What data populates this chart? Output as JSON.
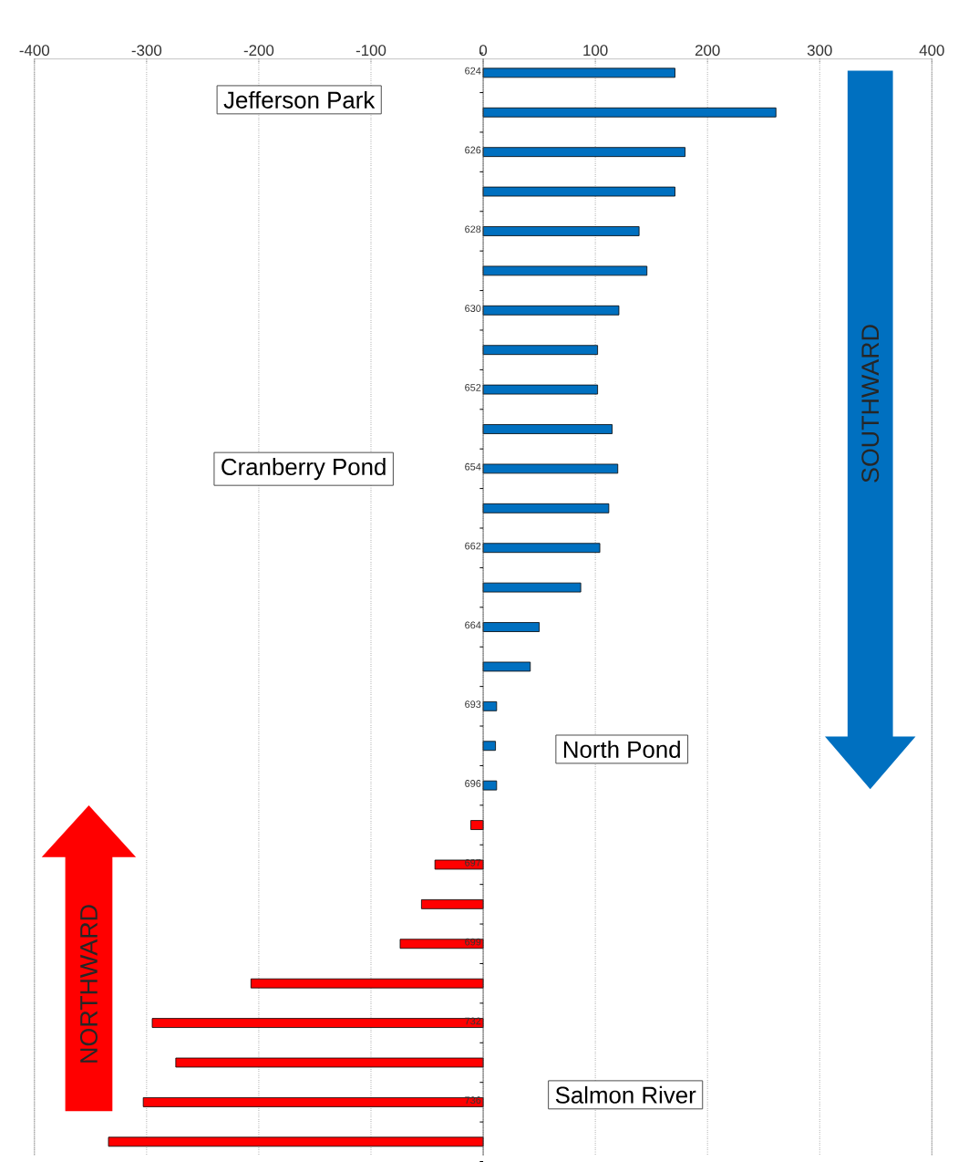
{
  "chart_data": {
    "type": "bar",
    "orientation": "horizontal",
    "categories": [
      "624",
      null,
      "626",
      null,
      "628",
      null,
      "630",
      null,
      "652",
      null,
      "654",
      null,
      "662",
      null,
      "664",
      null,
      "693",
      null,
      "696",
      null,
      "697",
      null,
      "699",
      null,
      "732",
      null,
      "736",
      null
    ],
    "values": [
      171,
      261,
      180,
      171,
      139,
      146,
      121,
      102,
      102,
      115,
      120,
      112,
      104,
      87,
      50,
      42,
      12,
      11,
      12,
      -11,
      -43,
      -55,
      -74,
      -207,
      -295,
      -274,
      -303,
      -334
    ],
    "colors": [
      "#0070c0",
      "#0070c0",
      "#0070c0",
      "#0070c0",
      "#0070c0",
      "#0070c0",
      "#0070c0",
      "#0070c0",
      "#0070c0",
      "#0070c0",
      "#0070c0",
      "#0070c0",
      "#0070c0",
      "#0070c0",
      "#0070c0",
      "#0070c0",
      "#0070c0",
      "#0070c0",
      "#0070c0",
      "#ff0000",
      "#ff0000",
      "#ff0000",
      "#ff0000",
      "#ff0000",
      "#ff0000",
      "#ff0000",
      "#ff0000",
      "#ff0000"
    ],
    "xlim": [
      -400,
      400
    ],
    "xticks": [
      -400,
      -300,
      -200,
      -100,
      0,
      100,
      200,
      300,
      400
    ],
    "grid": "x",
    "annotations": [
      "Jefferson Park",
      "Cranberry Pond",
      "North Pond",
      "Salmon River",
      "SOUTHWARD",
      "NORTHWARD"
    ]
  }
}
